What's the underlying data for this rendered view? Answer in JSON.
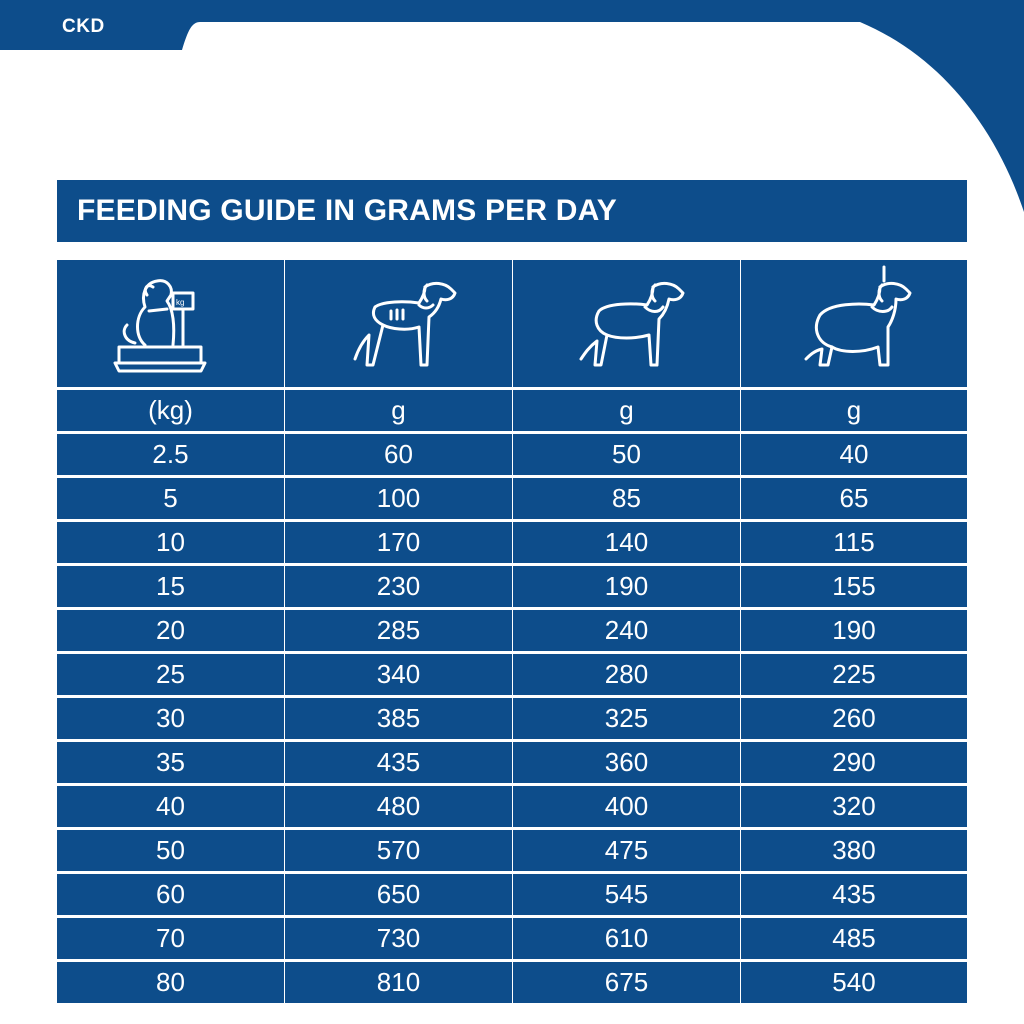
{
  "brand": "CKD",
  "title": "FEEDING GUIDE IN GRAMS PER DAY",
  "colors": {
    "primary": "#0d4d8b",
    "text": "#ffffff",
    "background": "#ffffff"
  },
  "columns": [
    {
      "icon": "dog-on-scale-icon",
      "unit": "(kg)"
    },
    {
      "icon": "thin-dog-icon",
      "unit": "g"
    },
    {
      "icon": "ideal-weight-dog-icon",
      "unit": "g"
    },
    {
      "icon": "overweight-dog-icon",
      "unit": "g"
    }
  ],
  "rows": [
    [
      "2.5",
      "60",
      "50",
      "40"
    ],
    [
      "5",
      "100",
      "85",
      "65"
    ],
    [
      "10",
      "170",
      "140",
      "115"
    ],
    [
      "15",
      "230",
      "190",
      "155"
    ],
    [
      "20",
      "285",
      "240",
      "190"
    ],
    [
      "25",
      "340",
      "280",
      "225"
    ],
    [
      "30",
      "385",
      "325",
      "260"
    ],
    [
      "35",
      "435",
      "360",
      "290"
    ],
    [
      "40",
      "480",
      "400",
      "320"
    ],
    [
      "50",
      "570",
      "475",
      "380"
    ],
    [
      "60",
      "650",
      "545",
      "435"
    ],
    [
      "70",
      "730",
      "610",
      "485"
    ],
    [
      "80",
      "810",
      "675",
      "540"
    ]
  ]
}
